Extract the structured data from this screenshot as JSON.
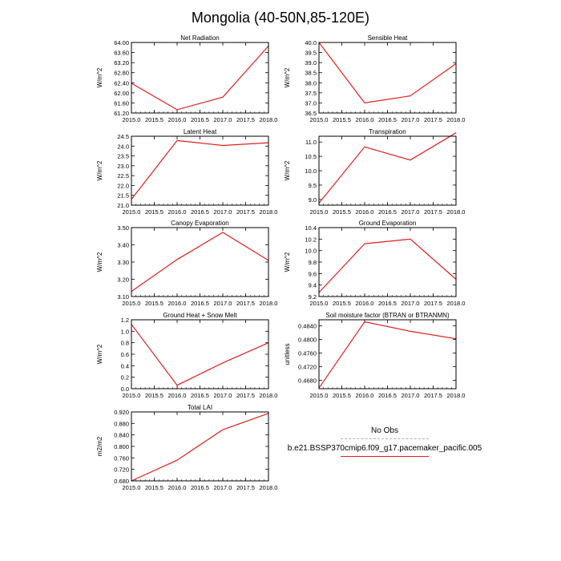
{
  "figure_title": "Mongolia (40-50N,85-120E)",
  "legend": {
    "items": [
      {
        "label": "No Obs",
        "color": "#aab0d8",
        "style": "dashed"
      },
      {
        "label": "b.e21.BSSP370cmip6.f09_g17.pacemaker_pacific.005",
        "color": "#e11e1e",
        "style": "solid"
      }
    ]
  },
  "chart_data": [
    {
      "type": "line",
      "title": "Net Radiation",
      "xlabel": "",
      "ylabel": "W/m^2",
      "xlim": [
        2015.0,
        2018.0
      ],
      "ylim": [
        61.2,
        64.0
      ],
      "xticks": [
        2015.0,
        2015.5,
        2016.0,
        2016.5,
        2017.0,
        2017.5,
        2018.0
      ],
      "xtick_labels": [
        "2015.0",
        "2015.5",
        "2016.0",
        "2016.5",
        "2017.0",
        "2017.5",
        "2018.0"
      ],
      "yticks": [
        61.2,
        61.6,
        62.0,
        62.4,
        62.8,
        63.2,
        63.6,
        64.0
      ],
      "ytick_labels": [
        "61.20",
        "61.60",
        "62.00",
        "62.40",
        "62.80",
        "63.20",
        "63.60",
        "64.00"
      ],
      "series": [
        {
          "name": "b.e21.BSSP370cmip6.f09_g17.pacemaker_pacific.005",
          "color": "#e11e1e",
          "x": [
            2015,
            2016,
            2017,
            2018
          ],
          "y": [
            62.38,
            61.33,
            61.83,
            63.86
          ]
        }
      ]
    },
    {
      "type": "line",
      "title": "Sensible Heat",
      "xlabel": "",
      "ylabel": "W/m^2",
      "xlim": [
        2015.0,
        2018.0
      ],
      "ylim": [
        36.5,
        40.0
      ],
      "xticks": [
        2015.0,
        2015.5,
        2016.0,
        2016.5,
        2017.0,
        2017.5,
        2018.0
      ],
      "xtick_labels": [
        "2015.0",
        "2015.5",
        "2016.0",
        "2016.5",
        "2017.0",
        "2017.5",
        "2018.0"
      ],
      "yticks": [
        36.5,
        37.0,
        37.5,
        38.0,
        38.5,
        39.0,
        39.5,
        40.0
      ],
      "ytick_labels": [
        "36.5",
        "37.0",
        "37.5",
        "38.0",
        "38.5",
        "39.0",
        "39.5",
        "40.0"
      ],
      "series": [
        {
          "name": "b.e21.BSSP370cmip6.f09_g17.pacemaker_pacific.005",
          "color": "#e11e1e",
          "x": [
            2015,
            2016,
            2017,
            2018
          ],
          "y": [
            40.0,
            37.0,
            37.35,
            38.95
          ]
        }
      ]
    },
    {
      "type": "line",
      "title": "Latent Heat",
      "xlabel": "",
      "ylabel": "W/m^2",
      "xlim": [
        2015.0,
        2018.0
      ],
      "ylim": [
        21.0,
        24.5
      ],
      "xticks": [
        2015.0,
        2015.5,
        2016.0,
        2016.5,
        2017.0,
        2017.5,
        2018.0
      ],
      "xtick_labels": [
        "2015.0",
        "2015.5",
        "2016.0",
        "2016.5",
        "2017.0",
        "2017.5",
        "2018.0"
      ],
      "yticks": [
        21.0,
        21.5,
        22.0,
        22.5,
        23.0,
        23.5,
        24.0,
        24.5
      ],
      "ytick_labels": [
        "21.0",
        "21.5",
        "22.0",
        "22.5",
        "23.0",
        "23.5",
        "24.0",
        "24.5"
      ],
      "series": [
        {
          "name": "b.e21.BSSP370cmip6.f09_g17.pacemaker_pacific.005",
          "color": "#e11e1e",
          "x": [
            2015,
            2016,
            2017,
            2018
          ],
          "y": [
            21.3,
            24.28,
            24.03,
            24.17
          ]
        }
      ]
    },
    {
      "type": "line",
      "title": "Transpiration",
      "xlabel": "",
      "ylabel": "W/m^2",
      "xlim": [
        2015.0,
        2018.0
      ],
      "ylim": [
        8.8,
        11.2
      ],
      "xticks": [
        2015.0,
        2015.5,
        2016.0,
        2016.5,
        2017.0,
        2017.5,
        2018.0
      ],
      "xtick_labels": [
        "2015.0",
        "2015.5",
        "2016.0",
        "2016.5",
        "2017.0",
        "2017.5",
        "2018.0"
      ],
      "yticks": [
        9.0,
        9.5,
        10.0,
        10.5,
        11.0
      ],
      "ytick_labels": [
        "9.0",
        "9.5",
        "10.0",
        "10.5",
        "11.0"
      ],
      "series": [
        {
          "name": "b.e21.BSSP370cmip6.f09_g17.pacemaker_pacific.005",
          "color": "#e11e1e",
          "x": [
            2015,
            2016,
            2017,
            2018
          ],
          "y": [
            8.87,
            10.83,
            10.37,
            11.32
          ]
        }
      ]
    },
    {
      "type": "line",
      "title": "Canopy Evaporation",
      "xlabel": "",
      "ylabel": "W/m^2",
      "xlim": [
        2015.0,
        2018.0
      ],
      "ylim": [
        3.1,
        3.5
      ],
      "xticks": [
        2015.0,
        2015.5,
        2016.0,
        2016.5,
        2017.0,
        2017.5,
        2018.0
      ],
      "xtick_labels": [
        "2015.0",
        "2015.5",
        "2016.0",
        "2016.5",
        "2017.0",
        "2017.5",
        "2018.0"
      ],
      "yticks": [
        3.1,
        3.2,
        3.3,
        3.4,
        3.5
      ],
      "ytick_labels": [
        "3.10",
        "3.20",
        "3.30",
        "3.40",
        "3.50"
      ],
      "series": [
        {
          "name": "b.e21.BSSP370cmip6.f09_g17.pacemaker_pacific.005",
          "color": "#e11e1e",
          "x": [
            2015,
            2016,
            2017,
            2018
          ],
          "y": [
            3.13,
            3.315,
            3.472,
            3.31
          ]
        }
      ]
    },
    {
      "type": "line",
      "title": "Ground Evaporation",
      "xlabel": "",
      "ylabel": "W/m^2",
      "xlim": [
        2015.0,
        2018.0
      ],
      "ylim": [
        9.2,
        10.4
      ],
      "xticks": [
        2015.0,
        2015.5,
        2016.0,
        2016.5,
        2017.0,
        2017.5,
        2018.0
      ],
      "xtick_labels": [
        "2015.0",
        "2015.5",
        "2016.0",
        "2016.5",
        "2017.0",
        "2017.5",
        "2018.0"
      ],
      "yticks": [
        9.2,
        9.4,
        9.6,
        9.8,
        10.0,
        10.2,
        10.4
      ],
      "ytick_labels": [
        "9.2",
        "9.4",
        "9.6",
        "9.8",
        "10.0",
        "10.2",
        "10.4"
      ],
      "series": [
        {
          "name": "b.e21.BSSP370cmip6.f09_g17.pacemaker_pacific.005",
          "color": "#e11e1e",
          "x": [
            2015,
            2016,
            2017,
            2018
          ],
          "y": [
            9.27,
            10.12,
            10.2,
            9.5
          ]
        }
      ]
    },
    {
      "type": "line",
      "title": "Ground Heat + Snow Melt",
      "xlabel": "",
      "ylabel": "W/m^2",
      "xlim": [
        2015.0,
        2018.0
      ],
      "ylim": [
        0.0,
        1.2
      ],
      "xticks": [
        2015.0,
        2015.5,
        2016.0,
        2016.5,
        2017.0,
        2017.5,
        2018.0
      ],
      "xtick_labels": [
        "2015.0",
        "2015.5",
        "2016.0",
        "2016.5",
        "2017.0",
        "2017.5",
        "2018.0"
      ],
      "yticks": [
        0.0,
        0.2,
        0.4,
        0.6,
        0.8,
        1.0,
        1.2
      ],
      "ytick_labels": [
        "0.0",
        "0.2",
        "0.4",
        "0.6",
        "0.8",
        "1.0",
        "1.2"
      ],
      "series": [
        {
          "name": "b.e21.BSSP370cmip6.f09_g17.pacemaker_pacific.005",
          "color": "#e11e1e",
          "x": [
            2015,
            2016,
            2017,
            2018
          ],
          "y": [
            1.12,
            0.06,
            0.45,
            0.8
          ]
        }
      ]
    },
    {
      "type": "line",
      "title": "Soil moisture factor (BTRAN or BTRANMN)",
      "xlabel": "",
      "ylabel": "unitless",
      "xlim": [
        2015.0,
        2018.0
      ],
      "ylim": [
        0.4655,
        0.4858
      ],
      "xticks": [
        2015.0,
        2015.5,
        2016.0,
        2016.5,
        2017.0,
        2017.5,
        2018.0
      ],
      "xtick_labels": [
        "2015.0",
        "2015.5",
        "2016.0",
        "2016.5",
        "2017.0",
        "2017.5",
        "2018.0"
      ],
      "yticks": [
        0.468,
        0.472,
        0.476,
        0.48,
        0.484
      ],
      "ytick_labels": [
        "0.4680",
        "0.4720",
        "0.4760",
        "0.4800",
        "0.4840"
      ],
      "series": [
        {
          "name": "b.e21.BSSP370cmip6.f09_g17.pacemaker_pacific.005",
          "color": "#e11e1e",
          "x": [
            2015,
            2016,
            2017,
            2018
          ],
          "y": [
            0.4657,
            0.4852,
            0.4824,
            0.4802
          ]
        }
      ]
    },
    {
      "type": "line",
      "title": "Total LAI",
      "xlabel": "",
      "ylabel": "m2/m2",
      "xlim": [
        2015.0,
        2018.0
      ],
      "ylim": [
        0.68,
        0.92
      ],
      "xticks": [
        2015.0,
        2015.5,
        2016.0,
        2016.5,
        2017.0,
        2017.5,
        2018.0
      ],
      "xtick_labels": [
        "2015.0",
        "2015.5",
        "2016.0",
        "2016.5",
        "2017.0",
        "2017.5",
        "2018.0"
      ],
      "yticks": [
        0.68,
        0.72,
        0.76,
        0.8,
        0.84,
        0.88,
        0.92
      ],
      "ytick_labels": [
        "0.680",
        "0.720",
        "0.760",
        "0.800",
        "0.840",
        "0.880",
        "0.920"
      ],
      "series": [
        {
          "name": "b.e21.BSSP370cmip6.f09_g17.pacemaker_pacific.005",
          "color": "#e11e1e",
          "x": [
            2015,
            2016,
            2017,
            2018
          ],
          "y": [
            0.68,
            0.752,
            0.858,
            0.915
          ]
        }
      ]
    }
  ]
}
